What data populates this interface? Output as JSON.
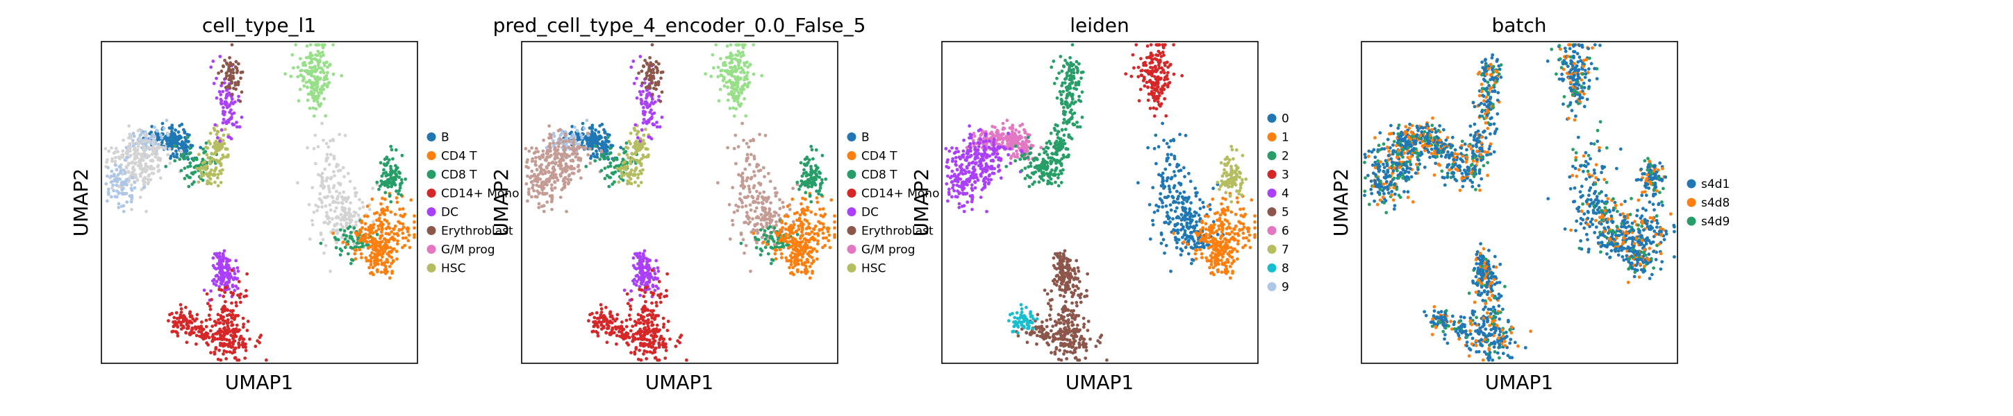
{
  "chart_data": [
    {
      "type": "scatter",
      "title": "cell_type_l1",
      "xlabel": "UMAP1",
      "ylabel": "UMAP2",
      "legend": "right",
      "categories": [
        "B",
        "CD4 T",
        "CD8 T",
        "CD14+ Mono",
        "DC",
        "Erythroblast",
        "G/M prog",
        "HSC"
      ],
      "colors": [
        "#1f77b4",
        "#ff7f0e",
        "#279e68",
        "#d62728",
        "#aa40fc",
        "#8c564b",
        "#e377c2",
        "#b5bd61"
      ],
      "extra_colors": {
        "unlabeled": "#d3d3d3",
        "light_green": "#98df8a",
        "light_blue": "#aec7e8"
      }
    },
    {
      "type": "scatter",
      "title": "pred_cell_type_4_encoder_0.0_False_5",
      "xlabel": "UMAP1",
      "ylabel": "UMAP2",
      "legend": "right",
      "categories": [
        "B",
        "CD4 T",
        "CD8 T",
        "CD14+ Mono",
        "DC",
        "Erythroblast",
        "G/M prog",
        "HSC"
      ],
      "colors": [
        "#1f77b4",
        "#ff7f0e",
        "#279e68",
        "#d62728",
        "#aa40fc",
        "#8c564b",
        "#e377c2",
        "#b5bd61"
      ],
      "extra_colors": {
        "tan": "#c49c94",
        "light_green": "#98df8a",
        "light_blue": "#aec7e8"
      }
    },
    {
      "type": "scatter",
      "title": "leiden",
      "xlabel": "UMAP1",
      "ylabel": "UMAP2",
      "legend": "right",
      "categories": [
        "0",
        "1",
        "2",
        "3",
        "4",
        "5",
        "6",
        "7",
        "8",
        "9"
      ],
      "colors": [
        "#1f77b4",
        "#ff7f0e",
        "#279e68",
        "#d62728",
        "#aa40fc",
        "#8c564b",
        "#e377c2",
        "#b5bd61",
        "#17becf",
        "#aec7e8"
      ]
    },
    {
      "type": "scatter",
      "title": "batch",
      "xlabel": "UMAP1",
      "ylabel": "UMAP2",
      "legend": "right",
      "categories": [
        "s4d1",
        "s4d8",
        "s4d9"
      ],
      "colors": [
        "#1f77b4",
        "#ff7f0e",
        "#279e68"
      ]
    }
  ]
}
